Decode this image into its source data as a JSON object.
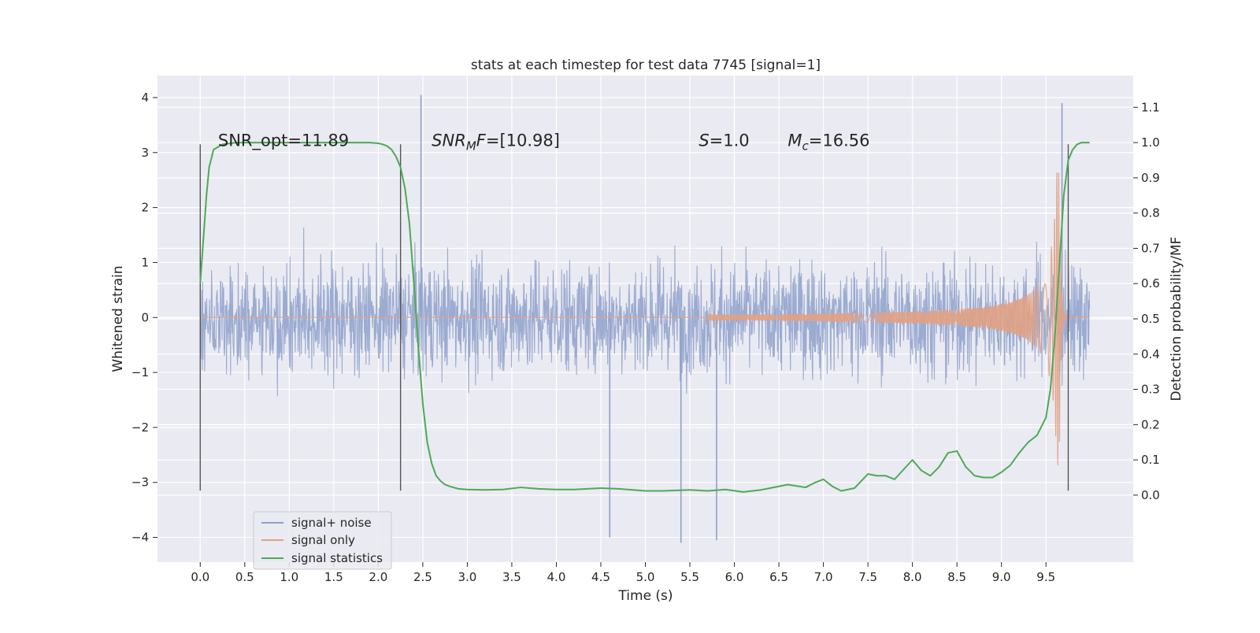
{
  "chart_data": {
    "type": "line",
    "title": "stats at each timestep for test data 7745 [signal=1]",
    "xlabel": "Time (s)",
    "ylabel": "Whitened strain",
    "ylabel_right": "Detection probability/MF",
    "xlim": [
      -0.48,
      10.48
    ],
    "ylim": [
      -4.45,
      4.4
    ],
    "ylim_right": [
      -0.19,
      1.19
    ],
    "x_ticks": [
      "0.0",
      "0.5",
      "1.0",
      "1.5",
      "2.0",
      "2.5",
      "3.0",
      "3.5",
      "4.0",
      "4.5",
      "5.0",
      "5.5",
      "6.0",
      "6.5",
      "7.0",
      "7.5",
      "8.0",
      "8.5",
      "9.0",
      "9.5"
    ],
    "y_ticks": [
      "4",
      "3",
      "2",
      "1",
      "0",
      "−1",
      "−2",
      "−3",
      "−4"
    ],
    "y_right_ticks": [
      "1.1",
      "1.0",
      "0.9",
      "0.8",
      "0.7",
      "0.6",
      "0.5",
      "0.4",
      "0.3",
      "0.2",
      "0.1",
      "0.0"
    ],
    "grid": true,
    "legend_position": "lower-left",
    "colors": {
      "background": "#eaeaf2",
      "grid": "#ffffff",
      "noise": "#8da0cb",
      "signal": "#e1a184",
      "stats": "#4daa55",
      "vline": "#555555"
    },
    "series": [
      {
        "name": "signal+ noise",
        "kind": "strain",
        "x_range": [
          0.0,
          9.99
        ],
        "typical_abs": [
          1.2,
          1.9
        ],
        "extreme": [
          4.05,
          -4.1
        ]
      },
      {
        "name": "signal only",
        "kind": "chirp",
        "x_range": [
          5.7,
          9.75
        ],
        "amplitude_start": 0.05,
        "amplitude_peak": 2.7,
        "merger_time": 9.65
      },
      {
        "name": "signal statistics",
        "kind": "probability",
        "x": [
          0.0,
          0.07,
          0.1,
          0.15,
          0.25,
          0.4,
          0.8,
          1.2,
          1.6,
          1.9,
          2.0,
          2.05,
          2.1,
          2.15,
          2.2,
          2.25,
          2.3,
          2.35,
          2.4,
          2.45,
          2.5,
          2.55,
          2.6,
          2.65,
          2.7,
          2.75,
          2.8,
          2.9,
          3.0,
          3.2,
          3.4,
          3.6,
          3.8,
          4.0,
          4.2,
          4.5,
          4.7,
          5.0,
          5.2,
          5.5,
          5.7,
          5.9,
          6.1,
          6.3,
          6.4,
          6.6,
          6.8,
          6.9,
          7.0,
          7.1,
          7.2,
          7.35,
          7.5,
          7.6,
          7.7,
          7.8,
          8.0,
          8.1,
          8.2,
          8.3,
          8.4,
          8.5,
          8.6,
          8.7,
          8.8,
          8.9,
          9.0,
          9.1,
          9.2,
          9.3,
          9.4,
          9.5,
          9.55,
          9.6,
          9.65,
          9.7,
          9.75,
          9.8,
          9.85,
          9.9,
          9.99
        ],
        "y": [
          0.6,
          0.85,
          0.93,
          0.98,
          0.995,
          1.0,
          1.0,
          1.0,
          1.0,
          1.0,
          0.998,
          0.995,
          0.99,
          0.98,
          0.96,
          0.93,
          0.87,
          0.77,
          0.6,
          0.42,
          0.26,
          0.15,
          0.09,
          0.055,
          0.04,
          0.03,
          0.025,
          0.018,
          0.016,
          0.015,
          0.016,
          0.022,
          0.018,
          0.016,
          0.016,
          0.02,
          0.018,
          0.012,
          0.012,
          0.015,
          0.012,
          0.016,
          0.009,
          0.015,
          0.02,
          0.03,
          0.022,
          0.035,
          0.045,
          0.025,
          0.012,
          0.02,
          0.06,
          0.055,
          0.055,
          0.045,
          0.1,
          0.07,
          0.055,
          0.08,
          0.12,
          0.125,
          0.08,
          0.055,
          0.05,
          0.05,
          0.065,
          0.085,
          0.12,
          0.15,
          0.17,
          0.22,
          0.3,
          0.45,
          0.65,
          0.85,
          0.95,
          0.98,
          0.995,
          1.0,
          1.0
        ]
      }
    ],
    "vlines": [
      0.0,
      2.25,
      9.75
    ],
    "annotations": [
      {
        "text": "SNR_opt=11.89",
        "x": 0.2
      },
      {
        "text": "SNR_MF=[10.98]",
        "x": 2.6
      },
      {
        "text": "S=1.0",
        "x": 5.6
      },
      {
        "text": "M_c=16.56",
        "x": 6.6
      }
    ]
  }
}
